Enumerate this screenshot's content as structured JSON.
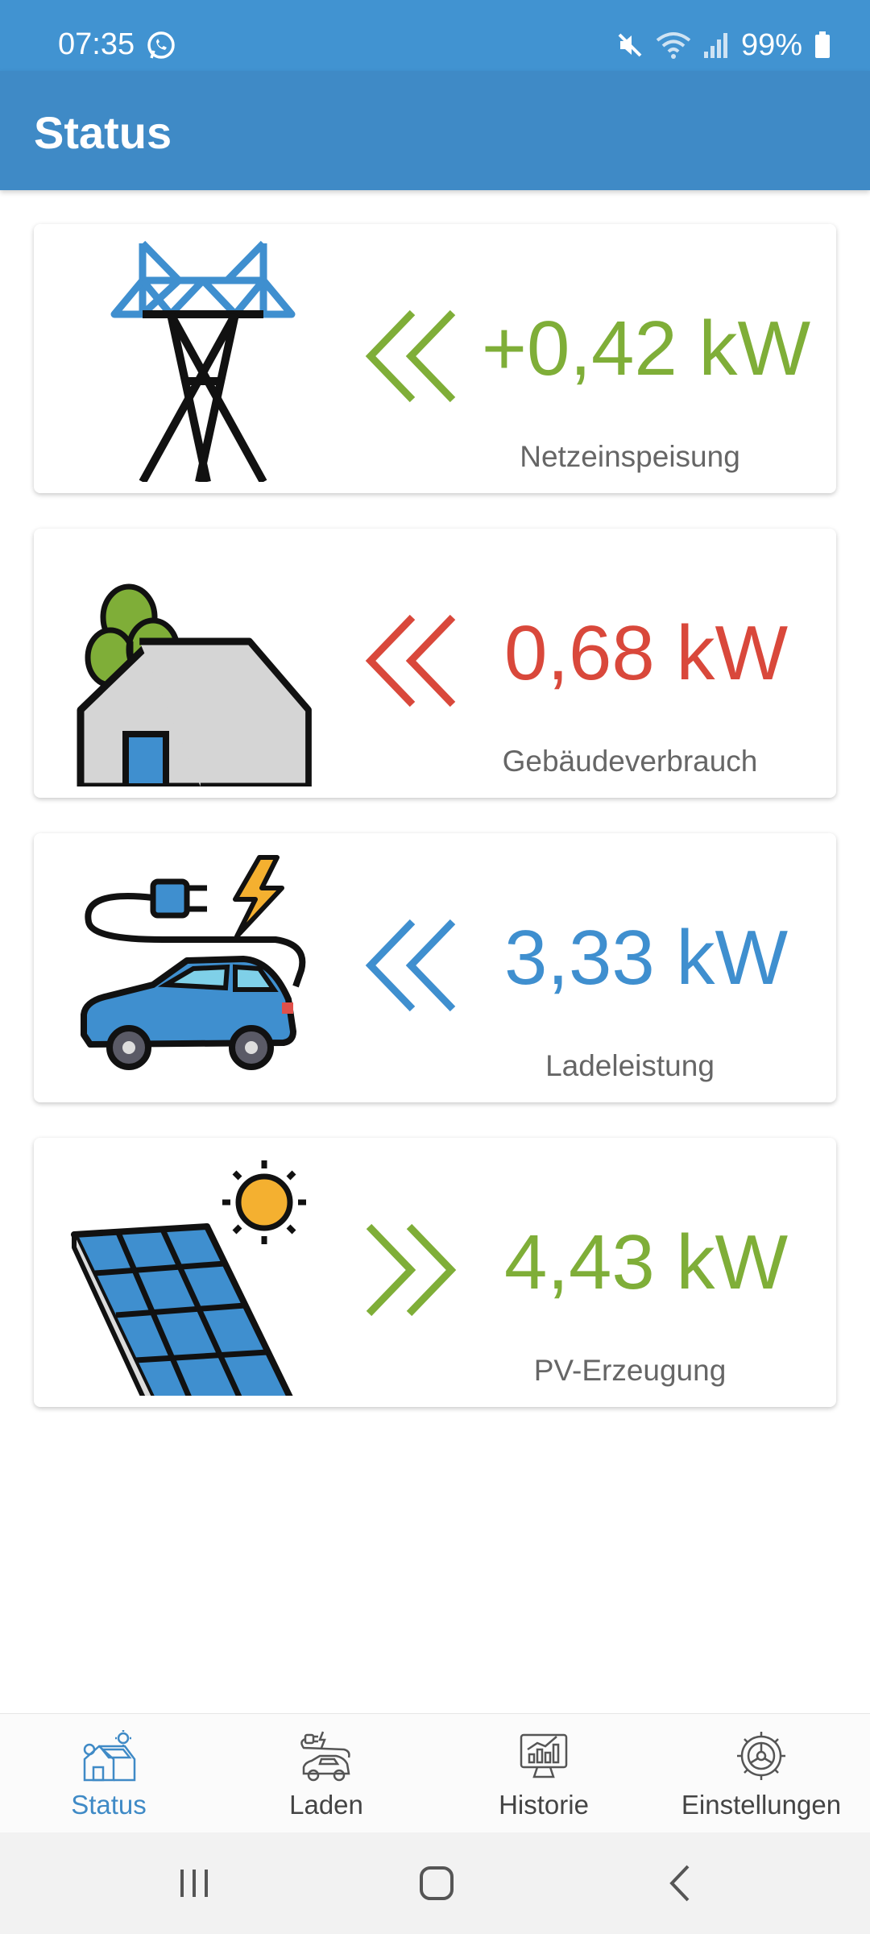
{
  "status_bar": {
    "time": "07:35",
    "battery": "99%",
    "icons": [
      "whatsapp-icon",
      "mute-icon",
      "wifi-icon",
      "signal-icon",
      "battery-icon"
    ]
  },
  "app_bar": {
    "title": "Status"
  },
  "cards": [
    {
      "name": "grid",
      "icon": "power-pylon-icon",
      "arrow": "double-left",
      "value": "+0,42 kW",
      "label": "Netzeinspeisung",
      "color": "#7fae38"
    },
    {
      "name": "building",
      "icon": "house-icon",
      "arrow": "double-left",
      "value": "0,68 kW",
      "label": "Gebäudeverbrauch",
      "color": "#d9483b"
    },
    {
      "name": "charging",
      "icon": "ev-car-plug-icon",
      "arrow": "double-left",
      "value": "3,33 kW",
      "label": "Ladeleistung",
      "color": "#3f8fcf"
    },
    {
      "name": "pv",
      "icon": "solar-panel-sun-icon",
      "arrow": "double-right",
      "value": "4,43 kW",
      "label": "PV-Erzeugung",
      "color": "#7fae38"
    }
  ],
  "bottom_nav": {
    "items": [
      {
        "label": "Status",
        "icon": "house-solar-icon",
        "active": true
      },
      {
        "label": "Laden",
        "icon": "car-charging-icon",
        "active": false
      },
      {
        "label": "Historie",
        "icon": "chart-monitor-icon",
        "active": false
      },
      {
        "label": "Einstellungen",
        "icon": "gear-icon",
        "active": false
      }
    ],
    "active_color": "#3f8ac6"
  },
  "system_nav": {
    "buttons": [
      "recent-apps-icon",
      "home-icon",
      "back-icon"
    ]
  }
}
